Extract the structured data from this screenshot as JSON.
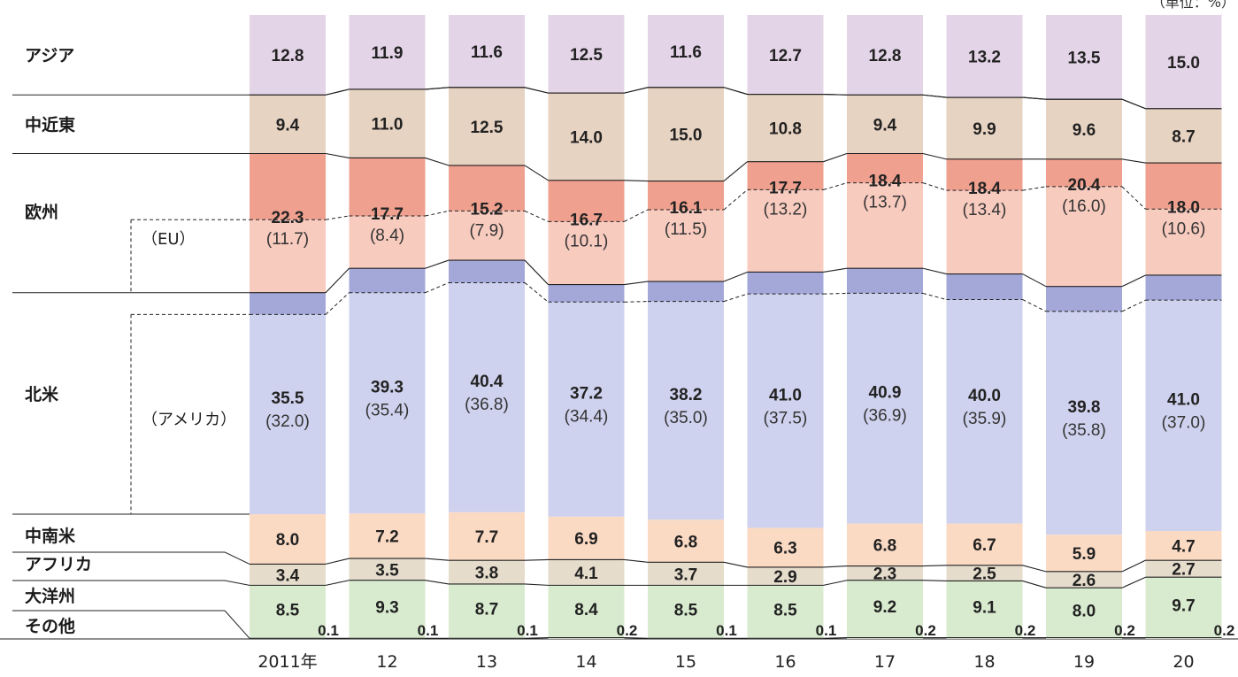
{
  "unit_label": "（単位：%）",
  "chart_data": {
    "type": "bar",
    "categories": [
      "2011年",
      "12",
      "13",
      "14",
      "15",
      "16",
      "17",
      "18",
      "19",
      "20"
    ],
    "ylim": [
      0,
      100
    ],
    "stack_order": [
      "asia",
      "mideast",
      "europe",
      "northamerica",
      "latinamerica",
      "africa",
      "oceania",
      "other",
      "tiny"
    ],
    "series": [
      {
        "key": "asia",
        "name": "アジア",
        "values": [
          12.8,
          11.9,
          11.6,
          12.5,
          11.6,
          12.7,
          12.8,
          13.2,
          13.5,
          15.0
        ],
        "color": "#e4d4e8"
      },
      {
        "key": "mideast",
        "name": "中近東",
        "values": [
          9.4,
          11.0,
          12.5,
          14.0,
          15.0,
          10.8,
          9.4,
          9.9,
          9.6,
          8.7
        ],
        "color": "#e7d3c2"
      },
      {
        "key": "europe",
        "name": "欧州",
        "values": [
          22.3,
          17.7,
          15.2,
          16.7,
          16.1,
          17.7,
          18.4,
          18.4,
          20.4,
          18.0
        ],
        "color": "#efa08e",
        "eu_color": "#f8cbbf",
        "sub_name": "（EU）",
        "sub_values": [
          11.7,
          8.4,
          7.9,
          10.1,
          11.5,
          13.2,
          13.7,
          13.4,
          16.0,
          10.6
        ]
      },
      {
        "key": "northamerica",
        "name": "北米",
        "values": [
          35.5,
          39.3,
          40.4,
          37.2,
          38.2,
          41.0,
          40.9,
          40.0,
          39.8,
          41.0
        ],
        "color": "#a3a8d9",
        "us_color": "#cfd2ee",
        "sub_name": "（アメリカ）",
        "sub_values": [
          32.0,
          35.4,
          36.8,
          34.4,
          35.0,
          37.5,
          36.9,
          35.9,
          35.8,
          37.0
        ]
      },
      {
        "key": "latinamerica",
        "name": "中南米",
        "values": [
          8.0,
          7.2,
          7.7,
          6.9,
          6.8,
          6.3,
          6.8,
          6.7,
          5.9,
          4.7
        ],
        "color": "#fbdac4"
      },
      {
        "key": "africa",
        "name": "アフリカ",
        "values": [
          3.4,
          3.5,
          3.8,
          4.1,
          3.7,
          2.9,
          2.3,
          2.5,
          2.6,
          2.7
        ],
        "color": "#e5dccb"
      },
      {
        "key": "oceania",
        "name": "大洋州",
        "values": [
          8.5,
          9.3,
          8.7,
          8.4,
          8.5,
          8.5,
          9.2,
          9.1,
          8.0,
          9.7
        ],
        "color": "#d8ebcf"
      },
      {
        "key": "other",
        "name": "その他",
        "values": [
          0.1,
          0.1,
          0.1,
          0.2,
          0.1,
          0.1,
          0.2,
          0.2,
          0.2,
          0.2
        ],
        "color": "#dfe7d6"
      }
    ]
  }
}
